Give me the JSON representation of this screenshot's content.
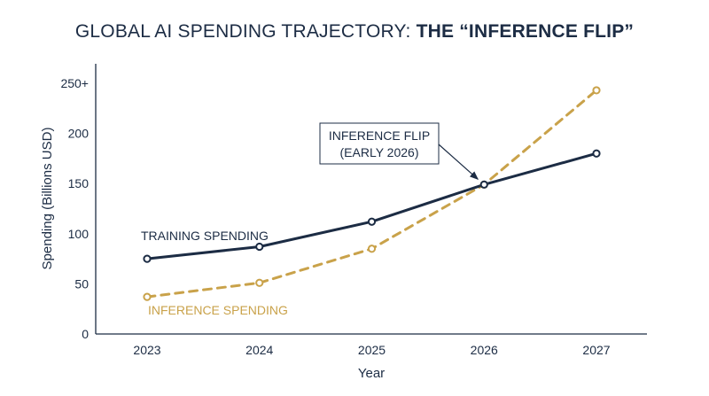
{
  "chart_data": {
    "type": "line",
    "title": "GLOBAL AI SPENDING TRAJECTORY: ",
    "title_emphasis": "THE “INFERENCE FLIP”",
    "xlabel": "Year",
    "ylabel": "Spending (Billions USD)",
    "x": [
      "2023",
      "2024",
      "2025",
      "2026",
      "2027"
    ],
    "ylim": [
      0,
      250
    ],
    "yticks": [
      {
        "value": 0,
        "label": "0"
      },
      {
        "value": 50,
        "label": "50"
      },
      {
        "value": 100,
        "label": "100"
      },
      {
        "value": 150,
        "label": "150"
      },
      {
        "value": 200,
        "label": "200"
      },
      {
        "value": 250,
        "label": "250+"
      }
    ],
    "grid": false,
    "series": [
      {
        "name": "TRAINING SPENDING",
        "values": [
          75,
          87,
          112,
          149,
          180
        ],
        "color": "#1c2c44",
        "style": "solid"
      },
      {
        "name": "INFERENCE SPENDING",
        "values": [
          37,
          51,
          85,
          149,
          243
        ],
        "color": "#c9a24a",
        "style": "dashed"
      }
    ],
    "annotation": {
      "lines": [
        "INFERENCE FLIP",
        "(EARLY 2026)"
      ],
      "target_x": "2026",
      "target_y": 149
    }
  }
}
